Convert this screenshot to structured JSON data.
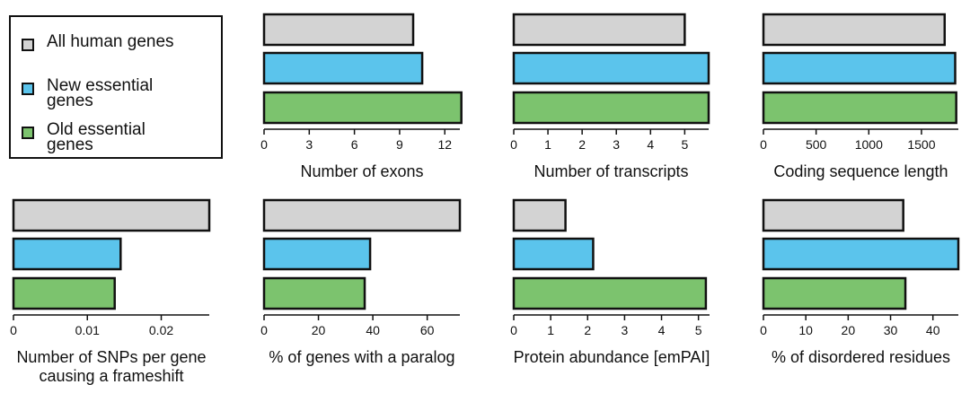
{
  "legend": {
    "items": [
      {
        "label": "All human genes",
        "color": "#d3d3d3"
      },
      {
        "label": "New essential genes",
        "color": "#5bc4ec"
      },
      {
        "label": "Old essential genes",
        "color": "#7cc36e"
      }
    ]
  },
  "chart_data": [
    {
      "type": "bar",
      "orientation": "horizontal",
      "xlabel": "Number of exons",
      "xlim": [
        0,
        13
      ],
      "ticks": [
        0,
        3,
        6,
        9,
        12
      ],
      "tick_labels": [
        "0",
        "3",
        "6",
        "9",
        "12"
      ],
      "series": [
        {
          "name": "All human genes",
          "value": 9.9
        },
        {
          "name": "New essential genes",
          "value": 10.5
        },
        {
          "name": "Old essential genes",
          "value": 13.1
        }
      ]
    },
    {
      "type": "bar",
      "orientation": "horizontal",
      "xlabel": "Number of transcripts",
      "xlim": [
        0,
        5.7
      ],
      "ticks": [
        0,
        1,
        2,
        3,
        4,
        5
      ],
      "tick_labels": [
        "0",
        "1",
        "2",
        "3",
        "4",
        "5"
      ],
      "series": [
        {
          "name": "All human genes",
          "value": 5.0
        },
        {
          "name": "New essential genes",
          "value": 5.7
        },
        {
          "name": "Old essential genes",
          "value": 5.7
        }
      ]
    },
    {
      "type": "bar",
      "orientation": "horizontal",
      "xlabel": "Coding sequence length",
      "xlim": [
        0,
        1850
      ],
      "ticks": [
        0,
        500,
        1000,
        1500
      ],
      "tick_labels": [
        "0",
        "500",
        "1000",
        "1500"
      ],
      "series": [
        {
          "name": "All human genes",
          "value": 1720
        },
        {
          "name": "New essential genes",
          "value": 1820
        },
        {
          "name": "Old essential genes",
          "value": 1830
        }
      ]
    },
    {
      "type": "bar",
      "orientation": "horizontal",
      "xlabel": "Number of SNPs per gene causing a frameshift",
      "xlim": [
        0,
        0.0265
      ],
      "ticks": [
        0,
        0.01,
        0.02
      ],
      "tick_labels": [
        "0",
        "0.01",
        "0.02"
      ],
      "series": [
        {
          "name": "All human genes",
          "value": 0.0265
        },
        {
          "name": "New essential genes",
          "value": 0.0145
        },
        {
          "name": "Old essential genes",
          "value": 0.0137
        }
      ]
    },
    {
      "type": "bar",
      "orientation": "horizontal",
      "xlabel": "% of genes with a paralog",
      "xlim": [
        0,
        72
      ],
      "ticks": [
        0,
        20,
        40,
        60
      ],
      "tick_labels": [
        "0",
        "20",
        "40",
        "60"
      ],
      "series": [
        {
          "name": "All human genes",
          "value": 72
        },
        {
          "name": "New essential genes",
          "value": 39
        },
        {
          "name": "Old essential genes",
          "value": 37
        }
      ]
    },
    {
      "type": "bar",
      "orientation": "horizontal",
      "xlabel": "Protein abundance [emPAI]",
      "xlim": [
        0,
        5.3
      ],
      "ticks": [
        0,
        1,
        2,
        3,
        4,
        5
      ],
      "tick_labels": [
        "0",
        "1",
        "2",
        "3",
        "4",
        "5"
      ],
      "series": [
        {
          "name": "All human genes",
          "value": 1.4
        },
        {
          "name": "New essential genes",
          "value": 2.15
        },
        {
          "name": "Old essential genes",
          "value": 5.2
        }
      ]
    },
    {
      "type": "bar",
      "orientation": "horizontal",
      "xlabel": "% of disordered residues",
      "xlim": [
        0,
        46
      ],
      "ticks": [
        0,
        10,
        20,
        30,
        40
      ],
      "tick_labels": [
        "0",
        "10",
        "20",
        "30",
        "40"
      ],
      "series": [
        {
          "name": "All human genes",
          "value": 33
        },
        {
          "name": "New essential genes",
          "value": 46
        },
        {
          "name": "Old essential genes",
          "value": 33.5
        }
      ]
    }
  ]
}
